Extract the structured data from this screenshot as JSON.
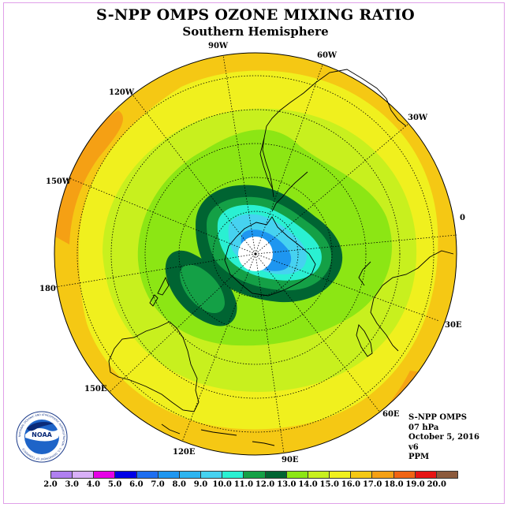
{
  "title": "S-NPP OMPS OZONE MIXING RATIO",
  "subtitle": "Southern Hemisphere",
  "longitude_labels": [
    "0",
    "30E",
    "60E",
    "90E",
    "120E",
    "150E",
    "180",
    "150W",
    "120W",
    "90W",
    "60W",
    "30W"
  ],
  "info": {
    "instrument": "S-NPP OMPS",
    "pressure": "07 hPa",
    "date": "October 5, 2016",
    "version": "v6",
    "units": "PPM"
  },
  "logo": {
    "text": "NOAA",
    "ring_text": "NATIONAL OCEANIC AND ATMOSPHERIC ADMINISTRATION · U.S. DEPARTMENT OF COMMERCE"
  },
  "colorbar": {
    "ticks": [
      "2.0",
      "3.0",
      "4.0",
      "5.0",
      "6.0",
      "7.0",
      "8.0",
      "9.0",
      "10.0",
      "11.0",
      "12.0",
      "13.0",
      "14.0",
      "15.0",
      "16.0",
      "17.0",
      "18.0",
      "19.0",
      "20.0"
    ],
    "colors": [
      "#b080f0",
      "#d8b0f8",
      "#e600e6",
      "#0000e6",
      "#1e6ef0",
      "#1e96f0",
      "#2cb4f0",
      "#46d2f0",
      "#2af0d2",
      "#14a046",
      "#006432",
      "#8ce614",
      "#c8f01e",
      "#f0f01e",
      "#f5c814",
      "#f5a014",
      "#f06414",
      "#e61414",
      "#8c5a3c"
    ]
  },
  "colors": {
    "frame": "#e0a0e8",
    "outer_band": "#f5c814",
    "polar_cap": "#ffffff",
    "continent_outline": "#000000"
  }
}
